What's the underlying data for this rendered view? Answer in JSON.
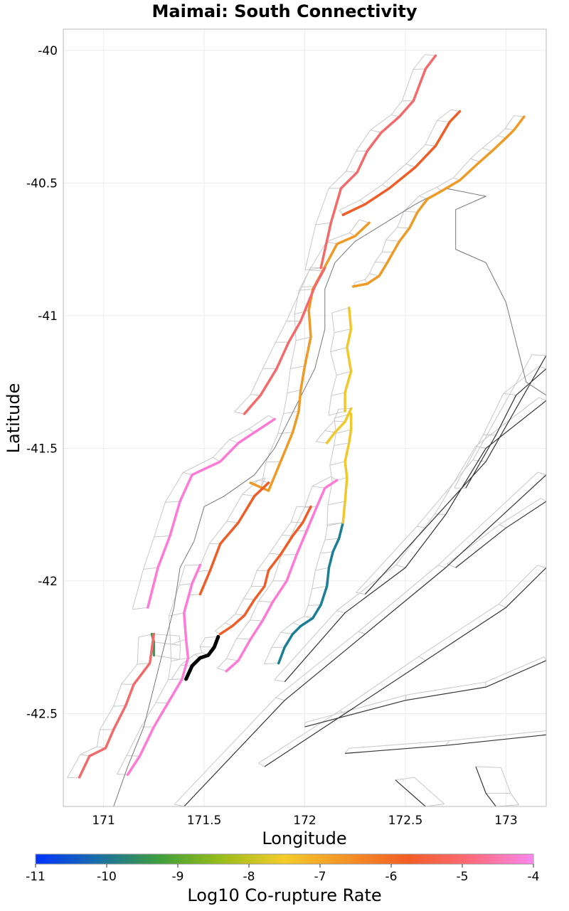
{
  "title": "Maimai: South Connectivity",
  "x_axis": {
    "label": "Longitude",
    "ticks": [
      "171",
      "171.5",
      "172",
      "172.5",
      "173"
    ],
    "tick_values": [
      171,
      171.5,
      172,
      172.5,
      173
    ],
    "range": [
      170.8,
      173.2
    ]
  },
  "y_axis": {
    "label": "Latitude",
    "ticks": [
      "-40",
      "-40.5",
      "-41",
      "-41.5",
      "-42",
      "-42.5"
    ],
    "tick_values": [
      -40,
      -40.5,
      -41,
      -41.5,
      -42,
      -42.5
    ],
    "range": [
      -42.85,
      -39.92
    ]
  },
  "colorbar": {
    "label": "Log10 Co-rupture Rate",
    "ticks": [
      "-11",
      "-10",
      "-9",
      "-8",
      "-7",
      "-6",
      "-5",
      "-4"
    ],
    "tick_values": [
      -11,
      -10,
      -9,
      -8,
      -7,
      -6,
      -5,
      -4
    ],
    "range": [
      -11,
      -4
    ],
    "colormap_stops": [
      "#0033ff",
      "#1a6fa6",
      "#3f9f3a",
      "#9cbd1a",
      "#f5cc2a",
      "#f59226",
      "#f25c26",
      "#ff6a7a",
      "#ff88f0"
    ]
  },
  "chart_data": {
    "type": "map",
    "title": "Maimai: South Connectivity",
    "xlabel": "Longitude",
    "ylabel": "Latitude",
    "xlim": [
      170.8,
      173.2
    ],
    "ylim": [
      -42.85,
      -39.92
    ],
    "grid": true,
    "coastline_color": "#777777",
    "context_fault_color": "#333333",
    "subsection_outline_color": "#c8c8c8",
    "ruptures": [
      {
        "color": "#000000",
        "coords": [
          [
            171.41,
            -42.37
          ],
          [
            171.44,
            -42.32
          ],
          [
            171.48,
            -42.29
          ],
          [
            171.52,
            -42.28
          ],
          [
            171.55,
            -42.25
          ],
          [
            171.57,
            -42.21
          ]
        ]
      },
      {
        "color": "#3a9a5a",
        "coords": [
          [
            171.24,
            -42.2
          ],
          [
            171.25,
            -42.23
          ],
          [
            171.25,
            -42.28
          ]
        ]
      },
      {
        "color": "#1a7f96",
        "coords": [
          [
            171.87,
            -42.31
          ],
          [
            171.9,
            -42.25
          ],
          [
            171.94,
            -42.2
          ],
          [
            171.98,
            -42.17
          ],
          [
            172.04,
            -42.14
          ],
          [
            172.08,
            -42.09
          ],
          [
            172.11,
            -42.02
          ],
          [
            172.12,
            -41.95
          ],
          [
            172.14,
            -41.89
          ],
          [
            172.17,
            -41.84
          ],
          [
            172.19,
            -41.78
          ]
        ]
      },
      {
        "color": "#f0c82a",
        "coords": [
          [
            172.19,
            -41.78
          ],
          [
            172.2,
            -41.7
          ],
          [
            172.21,
            -41.61
          ],
          [
            172.2,
            -41.55
          ],
          [
            172.22,
            -41.48
          ],
          [
            172.23,
            -41.43
          ],
          [
            172.23,
            -41.37
          ]
        ]
      },
      {
        "color": "#f0c82a",
        "coords": [
          [
            172.11,
            -41.48
          ],
          [
            172.15,
            -41.44
          ],
          [
            172.2,
            -41.4
          ],
          [
            172.23,
            -41.35
          ]
        ]
      },
      {
        "color": "#f0c82a",
        "coords": [
          [
            172.2,
            -41.36
          ],
          [
            172.2,
            -41.29
          ],
          [
            172.23,
            -41.21
          ],
          [
            172.21,
            -41.12
          ],
          [
            172.23,
            -41.05
          ],
          [
            172.22,
            -40.97
          ]
        ]
      },
      {
        "color": "#f09a26",
        "coords": [
          [
            171.73,
            -41.63
          ],
          [
            171.82,
            -41.66
          ],
          [
            171.88,
            -41.55
          ],
          [
            171.94,
            -41.44
          ],
          [
            171.97,
            -41.36
          ],
          [
            171.98,
            -41.28
          ],
          [
            172.0,
            -41.19
          ],
          [
            172.03,
            -41.08
          ],
          [
            172.02,
            -40.98
          ],
          [
            172.04,
            -40.9
          ],
          [
            172.09,
            -40.83
          ],
          [
            172.16,
            -40.73
          ],
          [
            172.25,
            -40.7
          ],
          [
            172.32,
            -40.65
          ]
        ]
      },
      {
        "color": "#f09a26",
        "coords": [
          [
            172.24,
            -40.89
          ],
          [
            172.31,
            -40.88
          ],
          [
            172.37,
            -40.85
          ],
          [
            172.41,
            -40.8
          ],
          [
            172.44,
            -40.76
          ],
          [
            172.47,
            -40.72
          ],
          [
            172.52,
            -40.67
          ],
          [
            172.56,
            -40.61
          ],
          [
            172.61,
            -40.56
          ],
          [
            172.68,
            -40.53
          ],
          [
            172.77,
            -40.49
          ],
          [
            172.87,
            -40.42
          ],
          [
            172.93,
            -40.38
          ],
          [
            173.0,
            -40.33
          ],
          [
            173.04,
            -40.3
          ],
          [
            173.09,
            -40.25
          ]
        ]
      },
      {
        "color": "#f05c26",
        "coords": [
          [
            172.19,
            -40.62
          ],
          [
            172.3,
            -40.58
          ],
          [
            172.42,
            -40.52
          ],
          [
            172.55,
            -40.44
          ],
          [
            172.65,
            -40.36
          ],
          [
            172.72,
            -40.27
          ],
          [
            172.77,
            -40.23
          ]
        ]
      },
      {
        "color": "#f05c26",
        "coords": [
          [
            171.48,
            -42.05
          ],
          [
            171.53,
            -41.96
          ],
          [
            171.58,
            -41.86
          ],
          [
            171.67,
            -41.78
          ],
          [
            171.75,
            -41.68
          ],
          [
            171.82,
            -41.63
          ]
        ]
      },
      {
        "color": "#f05c26",
        "coords": [
          [
            171.58,
            -42.2
          ],
          [
            171.64,
            -42.17
          ],
          [
            171.7,
            -42.13
          ],
          [
            171.75,
            -42.07
          ],
          [
            171.8,
            -42.02
          ],
          [
            171.82,
            -41.96
          ],
          [
            171.88,
            -41.9
          ],
          [
            171.94,
            -41.83
          ],
          [
            171.99,
            -41.78
          ],
          [
            172.03,
            -41.72
          ]
        ]
      },
      {
        "color": "#f46a6a",
        "coords": [
          [
            170.88,
            -42.74
          ],
          [
            170.93,
            -42.66
          ],
          [
            171.01,
            -42.63
          ],
          [
            171.05,
            -42.56
          ],
          [
            171.11,
            -42.47
          ],
          [
            171.15,
            -42.39
          ],
          [
            171.23,
            -42.31
          ],
          [
            171.25,
            -42.2
          ]
        ]
      },
      {
        "color": "#f46a6a",
        "coords": [
          [
            171.7,
            -41.37
          ],
          [
            171.78,
            -41.3
          ],
          [
            171.86,
            -41.2
          ],
          [
            171.92,
            -41.1
          ],
          [
            171.98,
            -41.02
          ],
          [
            172.05,
            -40.89
          ],
          [
            172.1,
            -40.82
          ]
        ]
      },
      {
        "color": "#f46a6a",
        "coords": [
          [
            172.08,
            -40.82
          ],
          [
            172.13,
            -40.65
          ],
          [
            172.18,
            -40.52
          ],
          [
            172.26,
            -40.46
          ],
          [
            172.31,
            -40.38
          ],
          [
            172.38,
            -40.31
          ],
          [
            172.47,
            -40.25
          ],
          [
            172.54,
            -40.19
          ],
          [
            172.6,
            -40.07
          ],
          [
            172.65,
            -40.02
          ]
        ]
      },
      {
        "color": "#ff7ad6",
        "coords": [
          [
            171.12,
            -42.73
          ],
          [
            171.18,
            -42.66
          ],
          [
            171.25,
            -42.55
          ],
          [
            171.32,
            -42.46
          ],
          [
            171.39,
            -42.37
          ],
          [
            171.42,
            -42.29
          ],
          [
            171.41,
            -42.22
          ],
          [
            171.4,
            -42.12
          ],
          [
            171.44,
            -42.01
          ],
          [
            171.48,
            -41.94
          ]
        ]
      },
      {
        "color": "#ff7ad6",
        "coords": [
          [
            171.22,
            -42.1
          ],
          [
            171.27,
            -41.95
          ],
          [
            171.33,
            -41.83
          ],
          [
            171.38,
            -41.7
          ],
          [
            171.44,
            -41.6
          ],
          [
            171.58,
            -41.55
          ],
          [
            171.67,
            -41.48
          ],
          [
            171.75,
            -41.44
          ],
          [
            171.85,
            -41.39
          ]
        ]
      },
      {
        "color": "#ff7ad6",
        "coords": [
          [
            171.61,
            -42.34
          ],
          [
            171.67,
            -42.3
          ],
          [
            171.73,
            -42.22
          ],
          [
            171.79,
            -42.15
          ],
          [
            171.84,
            -42.08
          ],
          [
            171.91,
            -42.0
          ],
          [
            171.96,
            -41.9
          ],
          [
            172.01,
            -41.81
          ],
          [
            172.06,
            -41.72
          ],
          [
            172.1,
            -41.65
          ],
          [
            172.16,
            -41.62
          ]
        ]
      }
    ]
  }
}
